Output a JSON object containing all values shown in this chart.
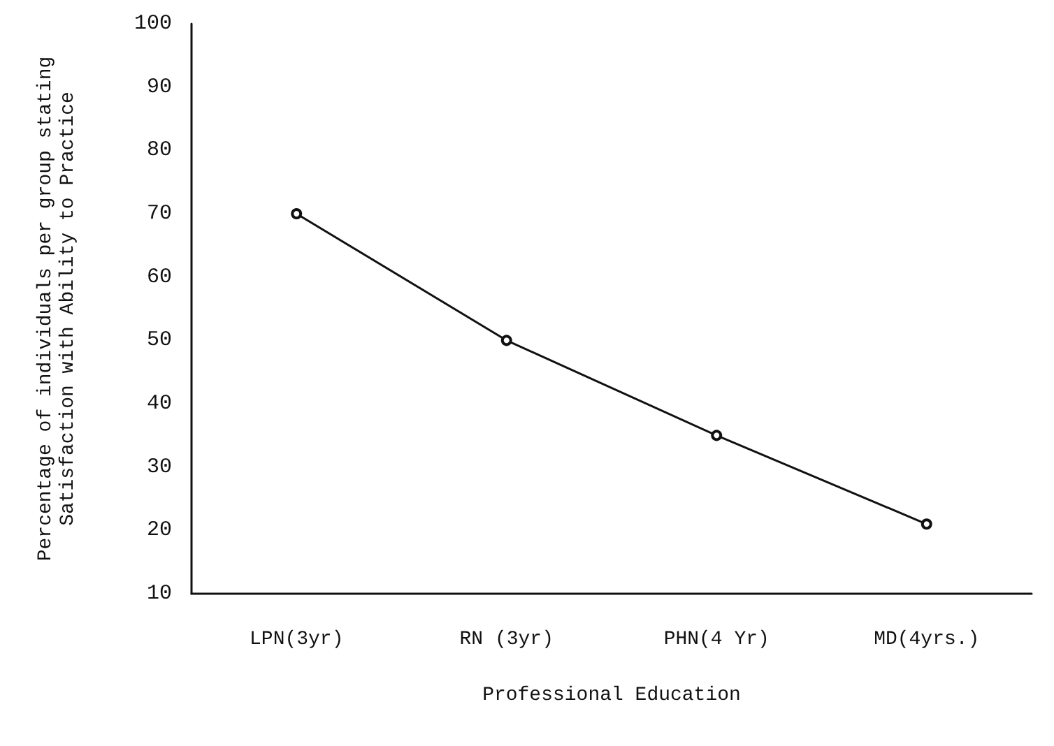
{
  "chart_data": {
    "type": "line",
    "xlabel": "Professional Education",
    "ylabel": "Percentage of individuals per group stating\nSatisfaction with Ability to Practice",
    "categories": [
      "LPN(3yr)",
      "RN (3yr)",
      "PHN(4 Yr)",
      "MD(4yrs.)"
    ],
    "series": [
      {
        "color": "#111111",
        "values": [
          70,
          50,
          35,
          21
        ]
      }
    ],
    "ylim": [
      10,
      100
    ],
    "yticks": [
      10,
      20,
      30,
      40,
      50,
      60,
      70,
      80,
      90,
      100
    ],
    "grid": false,
    "marker": "circle",
    "line_style": "solid"
  }
}
